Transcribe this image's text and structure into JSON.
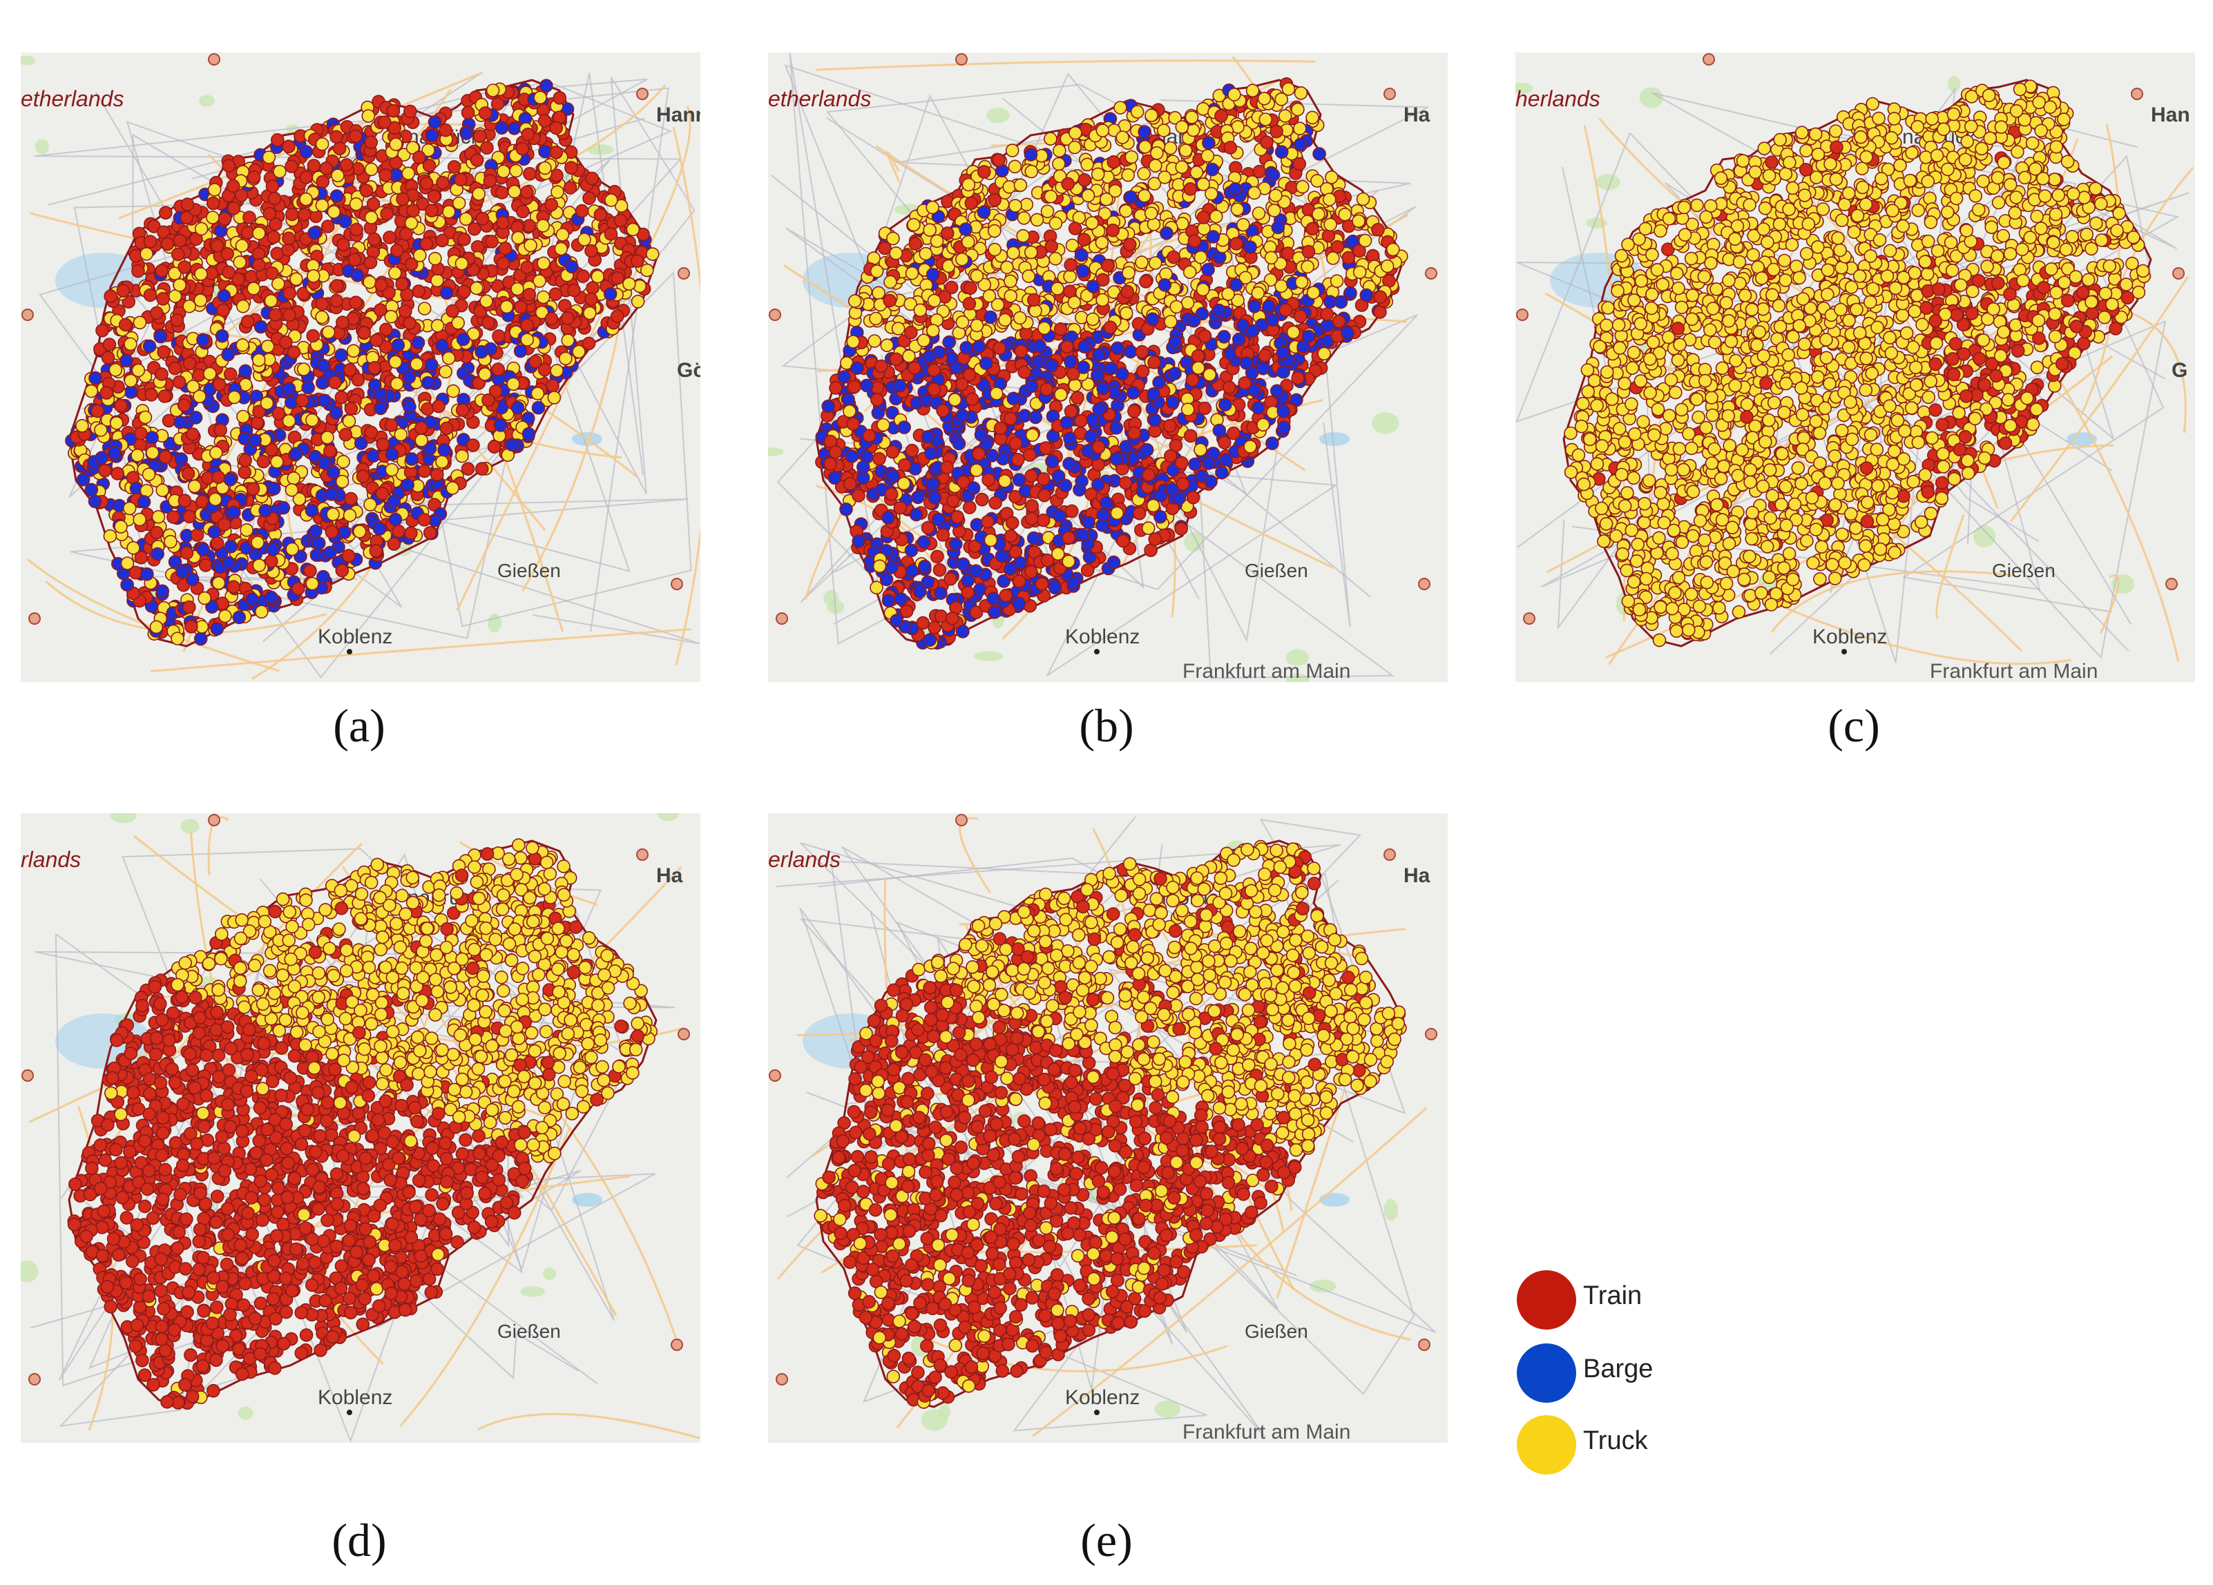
{
  "colors": {
    "train": "#d42b1a",
    "barge": "#1f2fd6",
    "truck": "#f7e03a",
    "outline": "#8b1a1a",
    "map_bg": "#eeeeea",
    "roads": "#f3c98b",
    "borders": "#b8b8c8",
    "water": "#a9d3ee",
    "forest": "#c8e6b0"
  },
  "panels": [
    {
      "id": "a",
      "caption": "(a)",
      "mix": {
        "train": 0.58,
        "barge": 0.16,
        "truck": 0.26
      },
      "pattern": "mixed",
      "labels": {
        "netherlands": "etherlands",
        "osnabruck": "nabrück",
        "hannover": "Hann",
        "gottingen": "Gö",
        "giessen": "Gießen",
        "koblenz": "Koblenz",
        "frankfurt": ""
      }
    },
    {
      "id": "b",
      "caption": "(b)",
      "mix": {
        "train": 0.4,
        "barge": 0.22,
        "truck": 0.38
      },
      "pattern": "north_truck_south_barge",
      "labels": {
        "netherlands": "etherlands",
        "osnabruck": "nabrück",
        "hannover": "Ha",
        "gottingen": "",
        "giessen": "Gießen",
        "koblenz": "Koblenz",
        "frankfurt": "Frankfurt am Main"
      }
    },
    {
      "id": "c",
      "caption": "(c)",
      "mix": {
        "train": 0.06,
        "barge": 0.0,
        "truck": 0.94
      },
      "pattern": "all_truck",
      "labels": {
        "netherlands": "herlands",
        "osnabruck": "nabrück",
        "hannover": "Han",
        "gottingen": "G",
        "giessen": "Gießen",
        "koblenz": "Koblenz",
        "frankfurt": "Frankfurt am Main"
      }
    },
    {
      "id": "d",
      "caption": "(d)",
      "mix": {
        "train": 0.62,
        "barge": 0.0,
        "truck": 0.38
      },
      "pattern": "north_truck_south_train",
      "labels": {
        "netherlands": "rlands",
        "osnabruck": "nabrück",
        "hannover": "Ha",
        "gottingen": "",
        "giessen": "Gießen",
        "koblenz": "Koblenz",
        "frankfurt": ""
      }
    },
    {
      "id": "e",
      "caption": "(e)",
      "mix": {
        "train": 0.52,
        "barge": 0.0,
        "truck": 0.48
      },
      "pattern": "north_truck_south_train_mixed",
      "labels": {
        "netherlands": "erlands",
        "osnabruck": "nabrück",
        "hannover": "Ha",
        "gottingen": "",
        "giessen": "Gießen",
        "koblenz": "Koblenz",
        "frankfurt": "Frankfurt am Main"
      }
    }
  ],
  "legend": [
    {
      "label": "Train",
      "color": "#c21a0c"
    },
    {
      "label": "Barge",
      "color": "#0a45c8"
    },
    {
      "label": "Truck",
      "color": "#f9d21a"
    }
  ]
}
